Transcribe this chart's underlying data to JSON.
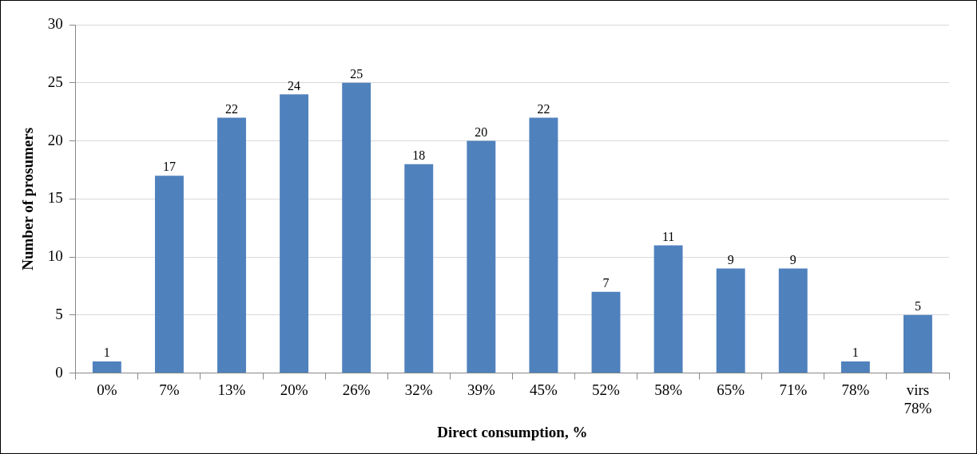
{
  "chart_data": {
    "type": "bar",
    "xlabel": "Direct consumption, %",
    "ylabel": "Number of prosumers",
    "categories": [
      "0%",
      "7%",
      "13%",
      "20%",
      "26%",
      "32%",
      "39%",
      "45%",
      "52%",
      "58%",
      "65%",
      "71%",
      "78%",
      "virs\n78%"
    ],
    "values": [
      1,
      17,
      22,
      24,
      25,
      18,
      20,
      22,
      7,
      11,
      9,
      9,
      1,
      5
    ],
    "color": "#4f81bd",
    "ylim": [
      0,
      30
    ],
    "yticks": [
      0,
      5,
      10,
      15,
      20,
      25,
      30
    ],
    "grid": "y",
    "data_labels": true,
    "legend": false
  }
}
